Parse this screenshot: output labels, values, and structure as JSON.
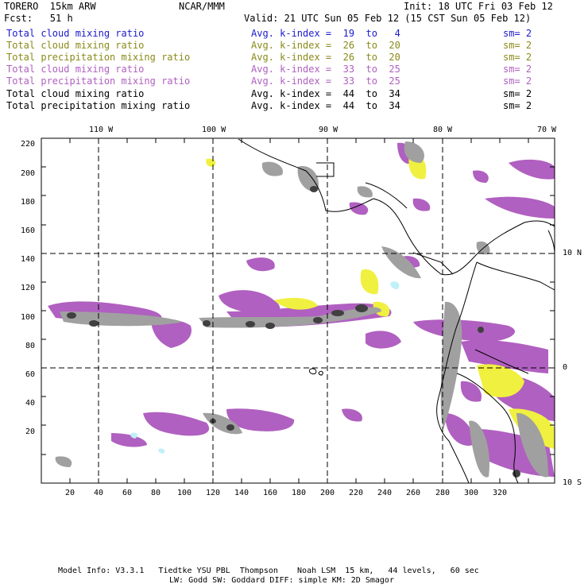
{
  "header": {
    "model": "TORERO  15km ARW",
    "center": "NCAR/MMM",
    "init": "Init: 18 UTC Fri 03 Feb 12",
    "fcst": "Fcst:   51 h",
    "valid": "Valid: 21 UTC Sun 05 Feb 12 (15 CST Sun 05 Feb 12)"
  },
  "legend": [
    {
      "field": "Total cloud mixing ratio",
      "kindex": "Avg. k-index =  19  to   4",
      "sm": "sm= 2",
      "color": "#1a1acc"
    },
    {
      "field": "Total cloud mixing ratio",
      "kindex": "Avg. k-index =  26  to  20",
      "sm": "sm= 2",
      "color": "#8a8a1a"
    },
    {
      "field": "Total precipitation mixing ratio",
      "kindex": "Avg. k-index =  26  to  20",
      "sm": "sm= 2",
      "color": "#8a8a1a"
    },
    {
      "field": "Total cloud mixing ratio",
      "kindex": "Avg. k-index =  33  to  25",
      "sm": "sm= 2",
      "color": "#b060c0"
    },
    {
      "field": "Total precipitation mixing ratio",
      "kindex": "Avg. k-index =  33  to  25",
      "sm": "sm= 2",
      "color": "#b060c0"
    },
    {
      "field": "Total cloud mixing ratio",
      "kindex": "Avg. k-index =  44  to  34",
      "sm": "sm= 2",
      "color": "#000000"
    },
    {
      "field": "Total precipitation mixing ratio",
      "kindex": "Avg. k-index =  44  to  34",
      "sm": "sm= 2",
      "color": "#000000"
    }
  ],
  "map": {
    "lon_labels": [
      "110 W",
      "100 W",
      "90 W",
      "80 W",
      "70 W"
    ],
    "lat_labels": [
      "10 N",
      "0",
      "10 S"
    ],
    "x_ticks": [
      "20",
      "40",
      "60",
      "80",
      "100",
      "120",
      "140",
      "160",
      "180",
      "200",
      "220",
      "240",
      "260",
      "280",
      "300",
      "320"
    ],
    "y_ticks": [
      "220",
      "200",
      "180",
      "160",
      "140",
      "120",
      "100",
      "80",
      "60",
      "40",
      "20"
    ],
    "colors": {
      "gray": "#a0a0a0",
      "dark": "#404040",
      "purple": "#b060c0",
      "yellow": "#f0f040",
      "cyan": "#c0f0f8"
    }
  },
  "footer": {
    "line1": "Model Info: V3.3.1   Tiedtke YSU PBL  Thompson    Noah LSM  15 km,   44 levels,   60 sec",
    "line2": "LW: Godd SW: Goddard DIFF: simple KM: 2D Smagor"
  }
}
